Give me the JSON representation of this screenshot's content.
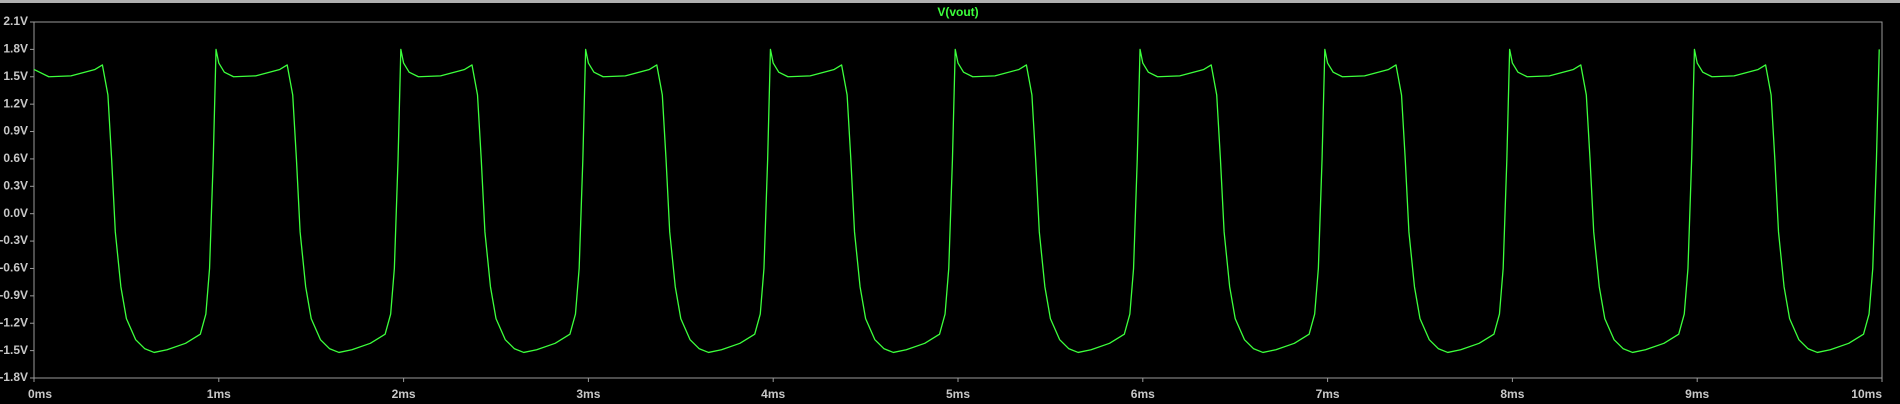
{
  "chart_data": {
    "type": "line",
    "series": [
      {
        "name": "V(vout)",
        "color": "#3cff3c",
        "values": [
          1.58,
          1.55,
          1.5,
          1.51,
          1.58,
          1.63,
          1.3,
          0.6,
          -0.2,
          -0.8,
          -1.15,
          -1.38,
          -1.48,
          -1.52,
          -1.49,
          -1.42,
          -1.32,
          -1.1,
          -0.6,
          0.6,
          1.8,
          1.65,
          1.55,
          1.5,
          1.51,
          1.58,
          1.63,
          1.3,
          0.6,
          -0.2,
          -0.8,
          -1.15,
          -1.38,
          -1.48,
          -1.52,
          -1.49,
          -1.42,
          -1.32,
          -1.1,
          -0.6,
          0.6,
          1.8,
          1.65,
          1.55,
          1.5,
          1.51,
          1.58,
          1.63,
          1.3,
          0.6,
          -0.2,
          -0.8,
          -1.15,
          -1.38,
          -1.48,
          -1.52,
          -1.49,
          -1.42,
          -1.32,
          -1.1,
          -0.6,
          0.6,
          1.8,
          1.65,
          1.55,
          1.5,
          1.51,
          1.58,
          1.63,
          1.3,
          0.6,
          -0.2,
          -0.8,
          -1.15,
          -1.38,
          -1.48,
          -1.52,
          -1.49,
          -1.42,
          -1.32,
          -1.1,
          -0.6,
          0.6,
          1.8,
          1.65,
          1.55,
          1.5,
          1.51,
          1.58,
          1.63,
          1.3,
          0.6,
          -0.2,
          -0.8,
          -1.15,
          -1.38,
          -1.48,
          -1.52,
          -1.49,
          -1.42,
          -1.32,
          -1.1,
          -0.6,
          0.6,
          1.8,
          1.65,
          1.55,
          1.5,
          1.51,
          1.58,
          1.63,
          1.3,
          0.6,
          -0.2,
          -0.8,
          -1.15,
          -1.38,
          -1.48,
          -1.52,
          -1.49,
          -1.42,
          -1.32,
          -1.1,
          -0.6,
          0.6,
          1.8,
          1.65,
          1.55,
          1.5,
          1.51,
          1.58,
          1.63,
          1.3,
          0.6,
          -0.2,
          -0.8,
          -1.15,
          -1.38,
          -1.48,
          -1.52,
          -1.49,
          -1.42,
          -1.32,
          -1.1,
          -0.6,
          0.6,
          1.8,
          1.65,
          1.55,
          1.5,
          1.51,
          1.58,
          1.63,
          1.3,
          0.6,
          -0.2,
          -0.8,
          -1.15,
          -1.38,
          -1.48,
          -1.52,
          -1.49,
          -1.42,
          -1.32,
          -1.1,
          -0.6,
          0.6,
          1.8,
          1.65,
          1.55,
          1.5,
          1.51,
          1.58,
          1.63,
          1.3,
          0.6,
          -0.2,
          -0.8,
          -1.15,
          -1.38,
          -1.48,
          -1.52,
          -1.49,
          -1.42,
          -1.32,
          -1.1,
          -0.6,
          0.6,
          1.8,
          1.65,
          1.55,
          1.5,
          1.51,
          1.58,
          1.63,
          1.3,
          0.6,
          -0.2,
          -0.8,
          -1.15,
          -1.38,
          -1.48,
          -1.52,
          -1.49,
          -1.42,
          -1.32,
          -1.1,
          -0.6,
          0.6,
          1.8
        ]
      }
    ],
    "x": [
      0,
      0.03,
      0.08,
      0.2,
      0.33,
      0.37,
      0.4,
      0.42,
      0.44,
      0.47,
      0.5,
      0.55,
      0.6,
      0.65,
      0.72,
      0.82,
      0.9,
      0.93,
      0.95,
      0.97,
      0.985,
      1,
      1.03,
      1.08,
      1.2,
      1.33,
      1.37,
      1.4,
      1.42,
      1.44,
      1.47,
      1.5,
      1.55,
      1.6,
      1.65,
      1.72,
      1.82,
      1.9,
      1.93,
      1.95,
      1.97,
      1.985,
      2,
      2.03,
      2.08,
      2.2,
      2.33,
      2.37,
      2.4,
      2.42,
      2.44,
      2.47,
      2.5,
      2.55,
      2.6,
      2.65,
      2.72,
      2.82,
      2.9,
      2.93,
      2.95,
      2.97,
      2.985,
      3,
      3.03,
      3.08,
      3.2,
      3.33,
      3.37,
      3.4,
      3.42,
      3.44,
      3.47,
      3.5,
      3.55,
      3.6,
      3.65,
      3.72,
      3.82,
      3.9,
      3.93,
      3.95,
      3.97,
      3.985,
      4,
      4.03,
      4.08,
      4.2,
      4.33,
      4.37,
      4.4,
      4.42,
      4.44,
      4.47,
      4.5,
      4.55,
      4.6,
      4.65,
      4.72,
      4.82,
      4.9,
      4.93,
      4.95,
      4.97,
      4.985,
      5,
      5.03,
      5.08,
      5.2,
      5.33,
      5.37,
      5.4,
      5.42,
      5.44,
      5.47,
      5.5,
      5.55,
      5.6,
      5.65,
      5.72,
      5.82,
      5.9,
      5.93,
      5.95,
      5.97,
      5.985,
      6,
      6.03,
      6.08,
      6.2,
      6.33,
      6.37,
      6.4,
      6.42,
      6.44,
      6.47,
      6.5,
      6.55,
      6.6,
      6.65,
      6.72,
      6.82,
      6.9,
      6.93,
      6.95,
      6.97,
      6.985,
      7,
      7.03,
      7.08,
      7.2,
      7.33,
      7.37,
      7.4,
      7.42,
      7.44,
      7.47,
      7.5,
      7.55,
      7.6,
      7.65,
      7.72,
      7.82,
      7.9,
      7.93,
      7.95,
      7.97,
      7.985,
      8,
      8.03,
      8.08,
      8.2,
      8.33,
      8.37,
      8.4,
      8.42,
      8.44,
      8.47,
      8.5,
      8.55,
      8.6,
      8.65,
      8.72,
      8.82,
      8.9,
      8.93,
      8.95,
      8.97,
      8.985,
      9,
      9.03,
      9.08,
      9.2,
      9.33,
      9.37,
      9.4,
      9.42,
      9.44,
      9.47,
      9.5,
      9.55,
      9.6,
      9.65,
      9.72,
      9.82,
      9.9,
      9.93,
      9.95,
      9.97,
      9.985
    ],
    "xlim": [
      0,
      10
    ],
    "xticks": [
      {
        "value": 0,
        "label": "0ms"
      },
      {
        "value": 1,
        "label": "1ms"
      },
      {
        "value": 2,
        "label": "2ms"
      },
      {
        "value": 3,
        "label": "3ms"
      },
      {
        "value": 4,
        "label": "4ms"
      },
      {
        "value": 5,
        "label": "5ms"
      },
      {
        "value": 6,
        "label": "6ms"
      },
      {
        "value": 7,
        "label": "7ms"
      },
      {
        "value": 8,
        "label": "8ms"
      },
      {
        "value": 9,
        "label": "9ms"
      },
      {
        "value": 10,
        "label": "10ms"
      }
    ],
    "ylim": [
      -1.8,
      2.1
    ],
    "yticks": [
      {
        "value": 2.1,
        "label": "2.1V"
      },
      {
        "value": 1.8,
        "label": "1.8V"
      },
      {
        "value": 1.5,
        "label": "1.5V"
      },
      {
        "value": 1.2,
        "label": "1.2V"
      },
      {
        "value": 0.9,
        "label": "0.9V"
      },
      {
        "value": 0.6,
        "label": "0.6V"
      },
      {
        "value": 0.3,
        "label": "0.3V"
      },
      {
        "value": 0.0,
        "label": "0.0V"
      },
      {
        "value": -0.3,
        "label": "-0.3V"
      },
      {
        "value": -0.6,
        "label": "-0.6V"
      },
      {
        "value": -0.9,
        "label": "-0.9V"
      },
      {
        "value": -1.2,
        "label": "-1.2V"
      },
      {
        "value": -1.5,
        "label": "-1.5V"
      },
      {
        "value": -1.8,
        "label": "-1.8V"
      }
    ],
    "grid": false
  }
}
